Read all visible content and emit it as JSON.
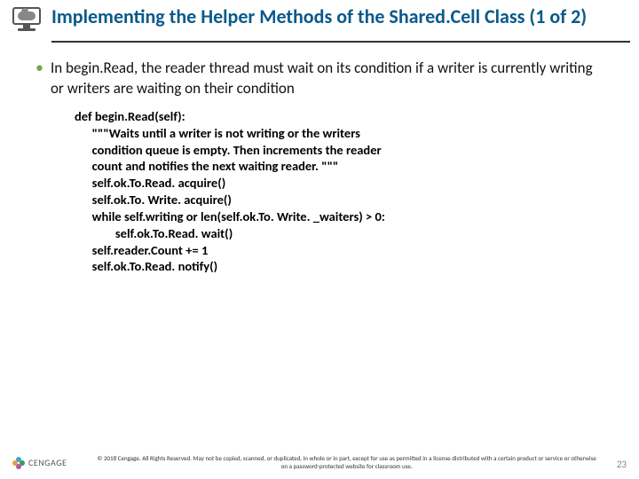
{
  "title": "Implementing the Helper Methods of the Shared.Cell Class (1 of 2)",
  "bullet": "In begin.Read, the reader thread must wait on its condition if a writer is currently writing or writers are waiting on their condition",
  "code": [
    "def begin.Read(self):",
    "      \"\"\"Waits until a writer is not writing or the writers",
    "      condition queue is empty. Then increments the reader",
    "      count and notifies the next waiting reader. \"\"\"",
    "      self.ok.To.Read. acquire()",
    "      self.ok.To. Write. acquire()",
    "      while self.writing or len(self.ok.To. Write. _waiters) > 0:",
    "              self.ok.To.Read. wait()",
    "      self.reader.Count += 1",
    "      self.ok.To.Read. notify()"
  ],
  "footer": {
    "brand": "CENGAGE",
    "copy": "© 2018 Cengage. All Rights Reserved. May not be copied, scanned, or duplicated, in whole or in part, except for use as permitted in a license distributed with a certain product or service or otherwise on a password-protected website for classroom use."
  },
  "pageNumber": "23",
  "colors": {
    "titleColor": "#0a5a8a",
    "bulletColor": "#6fa84f"
  }
}
